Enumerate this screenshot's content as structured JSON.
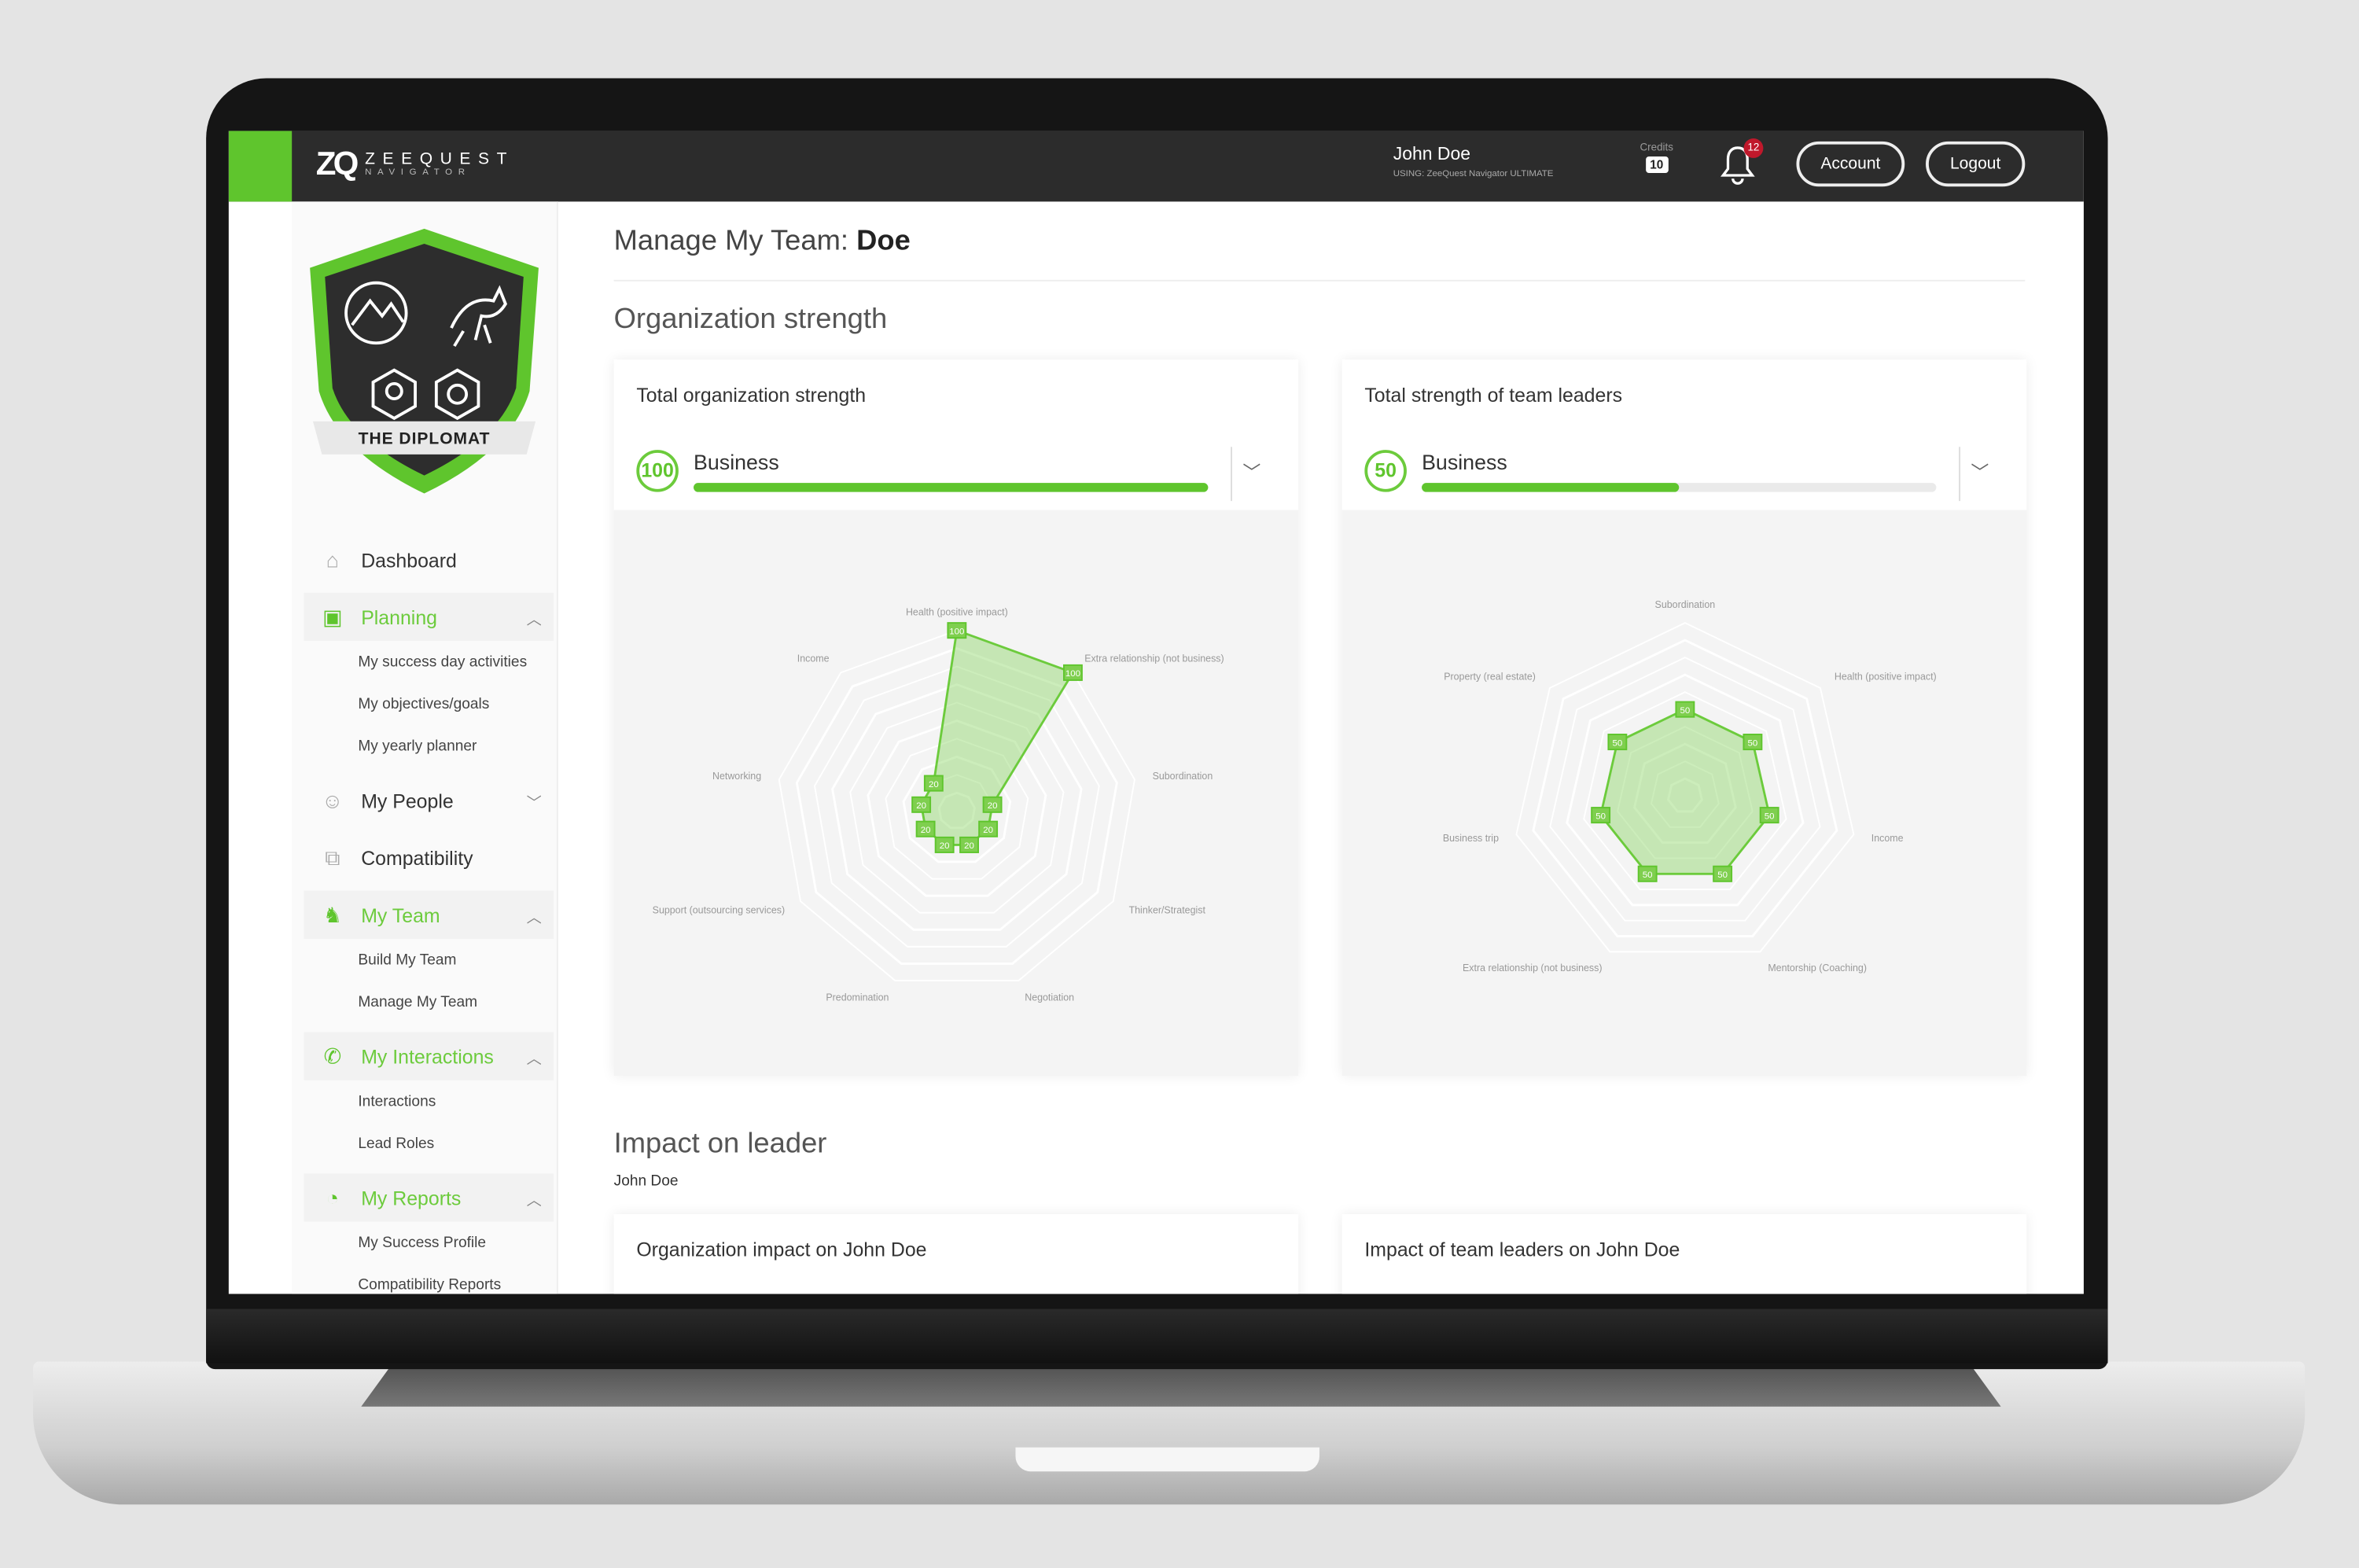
{
  "header": {
    "logo_mark": "ZQ",
    "logo_name": "ZEEQUEST",
    "logo_sub": "NAVIGATOR",
    "user_name": "John Doe",
    "user_plan": "USING: ZeeQuest Navigator ULTIMATE",
    "credits_label": "Credits",
    "credits_value": "10",
    "notifications": "12",
    "account": "Account",
    "logout": "Logout"
  },
  "badge": {
    "title": "THE DIPLOMAT"
  },
  "sidebar": {
    "dashboard": "Dashboard",
    "planning": "Planning",
    "planning_items": [
      "My success day activities",
      "My objectives/goals",
      "My yearly planner"
    ],
    "my_people": "My People",
    "compatibility": "Compatibility",
    "my_team": "My Team",
    "my_team_items": [
      "Build My Team",
      "Manage My Team"
    ],
    "my_interactions": "My Interactions",
    "interactions_items": [
      "Interactions",
      "Lead Roles"
    ],
    "my_reports": "My Reports",
    "reports_items": [
      "My Success Profile",
      "Compatibility Reports"
    ]
  },
  "main": {
    "title_prefix": "Manage My Team:",
    "title_name": "Doe",
    "section1": "Organization strength",
    "section2": "Impact on leader",
    "section2_sub": "John Doe",
    "card3_title": "Organization impact on John Doe",
    "card4_title": "Impact of team leaders on John Doe"
  },
  "colors": {
    "accent": "#5fc52d",
    "header": "#2c2c2c",
    "badge": "#c0182b"
  },
  "chart_data": [
    {
      "type": "radar",
      "title": "Total organization strength",
      "selector": "Business",
      "score": "100",
      "progress": 100,
      "categories": [
        "Health (positive impact)",
        "Extra relationship (not business)",
        "Subordination",
        "Thinker/Strategist",
        "Negotiation",
        "Predomination",
        "Support (outsourcing services)",
        "Networking",
        "Income"
      ],
      "values": [
        100,
        100,
        20,
        20,
        20,
        20,
        20,
        20,
        20
      ],
      "rlim": [
        0,
        100
      ]
    },
    {
      "type": "radar",
      "title": "Total strength of team leaders",
      "selector": "Business",
      "score": "50",
      "progress": 50,
      "categories": [
        "Subordination",
        "Health (positive impact)",
        "Income",
        "Mentorship (Coaching)",
        "Extra relationship (not business)",
        "Business trip",
        "Property (real estate)"
      ],
      "values": [
        50,
        50,
        50,
        50,
        50,
        50,
        50
      ],
      "rlim": [
        0,
        100
      ]
    }
  ]
}
